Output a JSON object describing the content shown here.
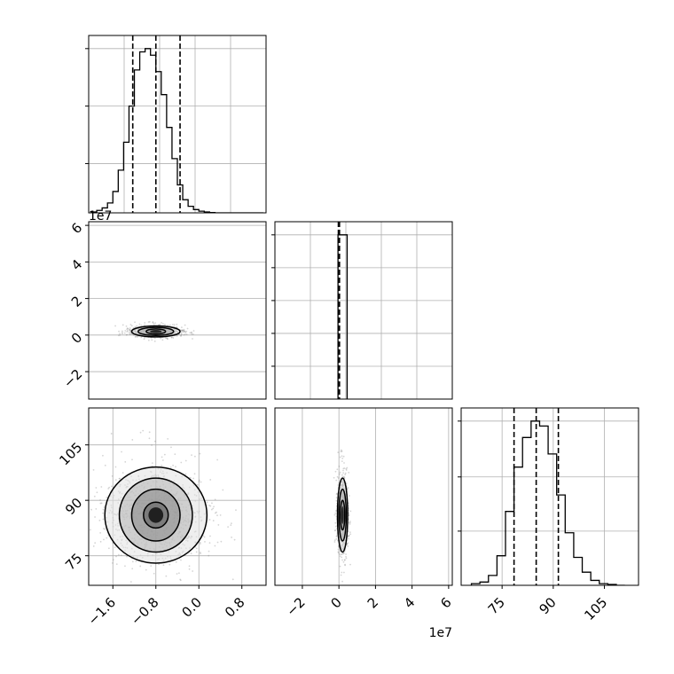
{
  "chart_data": {
    "type": "corner",
    "colors": {
      "line": "#000000",
      "grid": "#b0b0b0",
      "points": "#888888"
    },
    "panels": [
      {
        "id": "hist-p0",
        "type": "histogram",
        "grid": true,
        "x_range": [
          -2.05,
          1.25
        ],
        "y_range": [
          0,
          1.08
        ],
        "bin_edges": [
          -2.0,
          -1.9,
          -1.8,
          -1.7,
          -1.6,
          -1.5,
          -1.4,
          -1.3,
          -1.2,
          -1.1,
          -1.0,
          -0.9,
          -0.8,
          -0.7,
          -0.6,
          -0.5,
          -0.4,
          -0.3,
          -0.2,
          -0.1,
          0.0,
          0.1,
          0.2,
          0.3,
          0.4,
          0.5,
          0.6,
          0.7,
          0.8,
          0.9,
          1.0,
          1.1,
          1.2
        ],
        "counts": [
          0.005,
          0.015,
          0.03,
          0.06,
          0.13,
          0.26,
          0.43,
          0.65,
          0.87,
          0.98,
          1.0,
          0.96,
          0.86,
          0.72,
          0.52,
          0.33,
          0.17,
          0.08,
          0.04,
          0.02,
          0.01,
          0.005,
          0.002,
          0,
          0,
          0,
          0,
          0,
          0,
          0,
          0,
          0
        ],
        "quantiles": [
          -1.23,
          -0.8,
          -0.35
        ],
        "y_ticks": [
          0.3,
          0.65,
          1.0
        ]
      },
      {
        "id": "scatter-p1-p0",
        "type": "density2d",
        "grid": true,
        "x_range": [
          -2.05,
          1.25
        ],
        "y_range": [
          -3.5,
          6.2
        ],
        "y_ticks": [
          -2,
          0,
          2,
          4,
          6
        ],
        "y_tick_labels": [
          "−2",
          "0",
          "2",
          "4",
          "6"
        ],
        "y_offset_label": "1e7",
        "center": [
          -0.8,
          0.2
        ],
        "contour_radii_x": [
          0.18,
          0.33,
          0.45
        ],
        "contour_radii_y": [
          0.14,
          0.22,
          0.3
        ]
      },
      {
        "id": "hist-p1",
        "type": "histogram",
        "grid": true,
        "x_range": [
          -3.5,
          6.2
        ],
        "y_range": [
          0,
          1.08
        ],
        "bin_edges": [
          -0.05,
          0.45
        ],
        "counts": [
          1.0
        ],
        "quantiles": [
          -0.03,
          0.0,
          0.03
        ],
        "y_ticks": [
          0.2,
          0.4,
          0.6,
          0.8,
          1.0
        ]
      },
      {
        "id": "scatter-p2-p0",
        "type": "density2d",
        "grid": true,
        "x_range": [
          -2.05,
          1.25
        ],
        "y_range": [
          67,
          115
        ],
        "x_ticks": [
          -1.6,
          -0.8,
          0.0,
          0.8
        ],
        "x_tick_labels": [
          "−1.6",
          "−0.8",
          "0.0",
          "0.8"
        ],
        "y_ticks": [
          75,
          90,
          105
        ],
        "y_tick_labels": [
          "75",
          "90",
          "105"
        ],
        "center": [
          -0.8,
          86
        ],
        "contour_radii_x": [
          0.23,
          0.45,
          0.68,
          0.95
        ],
        "contour_radii_y": [
          3.5,
          7.0,
          10.0,
          13.0
        ]
      },
      {
        "id": "scatter-p2-p1",
        "type": "density2d",
        "grid": true,
        "x_range": [
          -3.5,
          6.2
        ],
        "y_range": [
          67,
          115
        ],
        "x_ticks": [
          -2,
          0,
          2,
          4,
          6
        ],
        "x_tick_labels": [
          "−2",
          "0",
          "2",
          "4",
          "6"
        ],
        "x_offset_label": "1e7",
        "center": [
          0.2,
          86
        ],
        "contour_radii_x": [
          0.12,
          0.2,
          0.28
        ],
        "contour_radii_y": [
          4,
          7,
          10
        ]
      },
      {
        "id": "hist-p2",
        "type": "histogram",
        "grid": true,
        "x_range": [
          63,
          115
        ],
        "y_range": [
          0,
          1.08
        ],
        "bin_edges": [
          66,
          68.5,
          71,
          73.5,
          76,
          78.5,
          81,
          83.5,
          86,
          88.5,
          91,
          93.5,
          96,
          98.5,
          101,
          103.5,
          106,
          108.5,
          111
        ],
        "counts": [
          0.01,
          0.02,
          0.06,
          0.18,
          0.45,
          0.72,
          0.9,
          1.0,
          0.97,
          0.8,
          0.55,
          0.32,
          0.17,
          0.08,
          0.03,
          0.01,
          0.005,
          0
        ],
        "quantiles": [
          78.5,
          85,
          91.5
        ],
        "x_ticks": [
          75,
          90,
          105
        ],
        "x_tick_labels": [
          "75",
          "90",
          "105"
        ],
        "y_ticks": [
          0.33,
          0.66,
          1.0
        ]
      }
    ]
  }
}
